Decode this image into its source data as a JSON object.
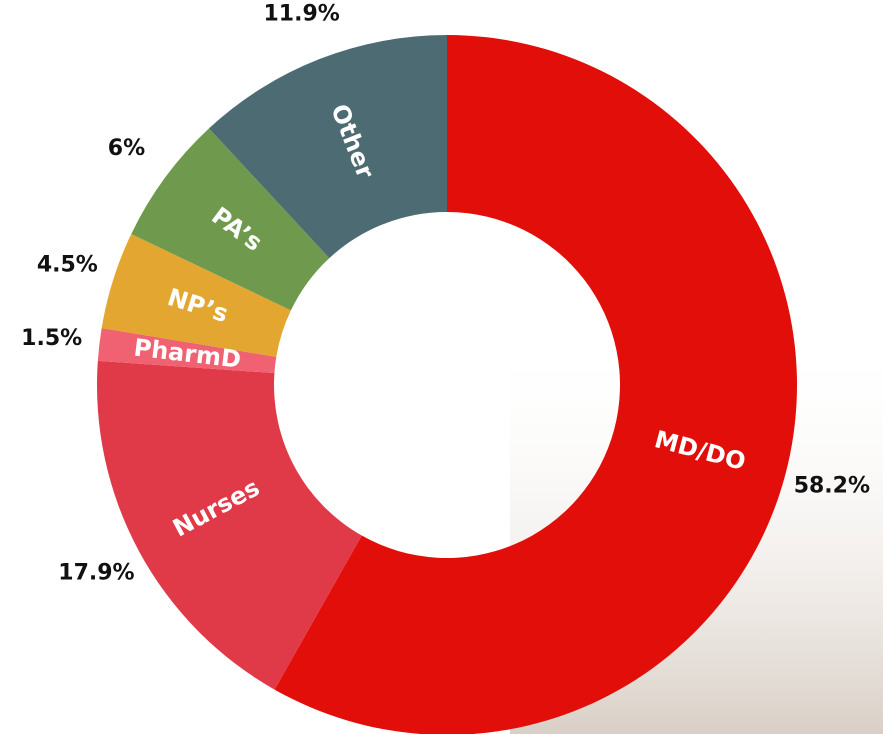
{
  "chart_data": {
    "type": "donut",
    "categories": [
      "MD/DO",
      "Nurses",
      "PharmD",
      "NP’s",
      "PA’s",
      "Other"
    ],
    "values": [
      58.2,
      17.9,
      1.5,
      4.5,
      6,
      11.9
    ],
    "value_labels": [
      "58.2%",
      "17.9%",
      "1.5%",
      "4.5%",
      "6%",
      "11.9%"
    ],
    "colors": [
      "#e20e0a",
      "#e03a48",
      "#f06272",
      "#e3a731",
      "#6f9a4d",
      "#4d6b72"
    ]
  }
}
